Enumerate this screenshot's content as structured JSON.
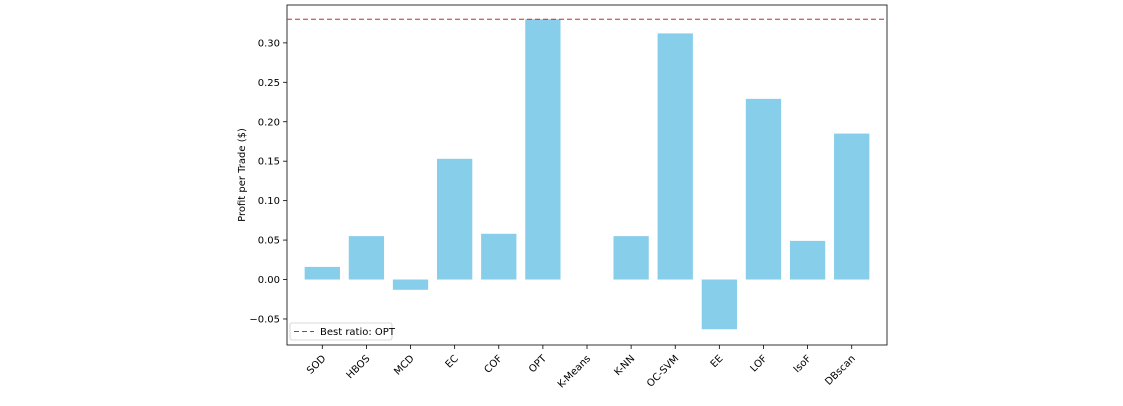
{
  "chart_data": {
    "type": "bar",
    "title": "",
    "xlabel": "",
    "ylabel": "Profit per Trade ($)",
    "categories": [
      "SOD",
      "HBOS",
      "MCD",
      "EC",
      "COF",
      "OPT",
      "K-Means",
      "K-NN",
      "OC-SVM",
      "EE",
      "LOF",
      "IsoF",
      "DBscan"
    ],
    "values": [
      0.016,
      0.055,
      -0.013,
      0.153,
      0.058,
      0.33,
      0.0,
      0.055,
      0.312,
      -0.063,
      0.229,
      0.049,
      0.185
    ],
    "ylim": [
      -0.083,
      0.348
    ],
    "yticks": [
      -0.05,
      0.0,
      0.05,
      0.1,
      0.15,
      0.2,
      0.25,
      0.3
    ],
    "ytick_labels": [
      "−0.05",
      "0.00",
      "0.05",
      "0.10",
      "0.15",
      "0.20",
      "0.25",
      "0.30"
    ],
    "reference_line": {
      "value": 0.33,
      "label": "Best ratio: OPT",
      "color": "#d62728",
      "style": "dashed"
    },
    "bar_color": "#87ceeb",
    "grid": false,
    "legend": {
      "position": "lower-left",
      "entries": [
        "Best ratio: OPT"
      ]
    }
  }
}
